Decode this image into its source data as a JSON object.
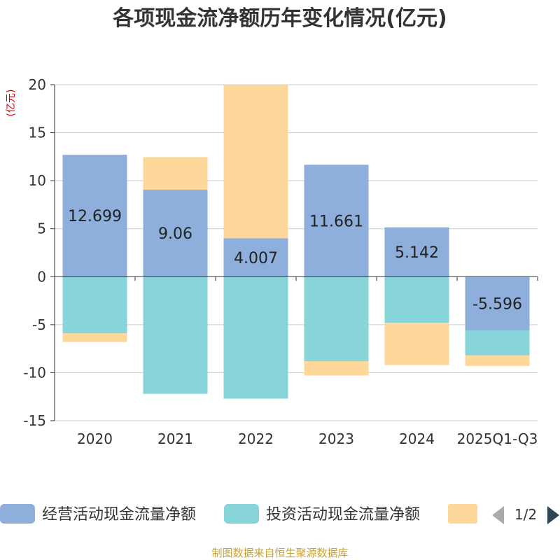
{
  "colors": {
    "operating": "#8eaedb",
    "investing": "#87d5d8",
    "financing": "#fdd89a",
    "unit": "#cc0000",
    "source": "#c8a232",
    "grid": "#cccccc",
    "axis": "#333333",
    "pager_inactive": "#aaaaaa",
    "pager_active": "#2f4554"
  },
  "footer": {
    "source": "制图数据来自恒生聚源数据库"
  },
  "legend": {
    "items": [
      "经营活动现金流量净额",
      "投资活动现金流量净额",
      ""
    ],
    "page_indicator": "1/2"
  },
  "chart_data": {
    "type": "bar",
    "stacked": true,
    "title": "各项现金流净额历年变化情况(亿元)",
    "unit": "(亿元)",
    "categories": [
      "2020",
      "2021",
      "2022",
      "2023",
      "2024",
      "2025Q1-Q3"
    ],
    "ylim": [
      -15,
      20
    ],
    "yticks": [
      20,
      15,
      10,
      5,
      0,
      -5,
      -10,
      -15
    ],
    "ytick_labels": [
      "20",
      "15",
      "10",
      "5",
      "0",
      "-5",
      "-10",
      "-15"
    ],
    "grid": true,
    "series": [
      {
        "name": "经营活动现金流量净额",
        "values": [
          12.699,
          9.06,
          4.007,
          11.661,
          5.142,
          -5.596
        ]
      },
      {
        "name": "投资活动现金流量净额",
        "values": [
          -5.9,
          -12.2,
          -12.7,
          -8.8,
          -4.8,
          -2.6
        ]
      },
      {
        "name": "",
        "values": [
          -0.9,
          3.4,
          16.0,
          -1.5,
          -4.4,
          -1.1
        ]
      }
    ],
    "data_labels": [
      "12.699",
      "9.06",
      "4.007",
      "11.661",
      "5.142",
      "-5.596"
    ]
  }
}
